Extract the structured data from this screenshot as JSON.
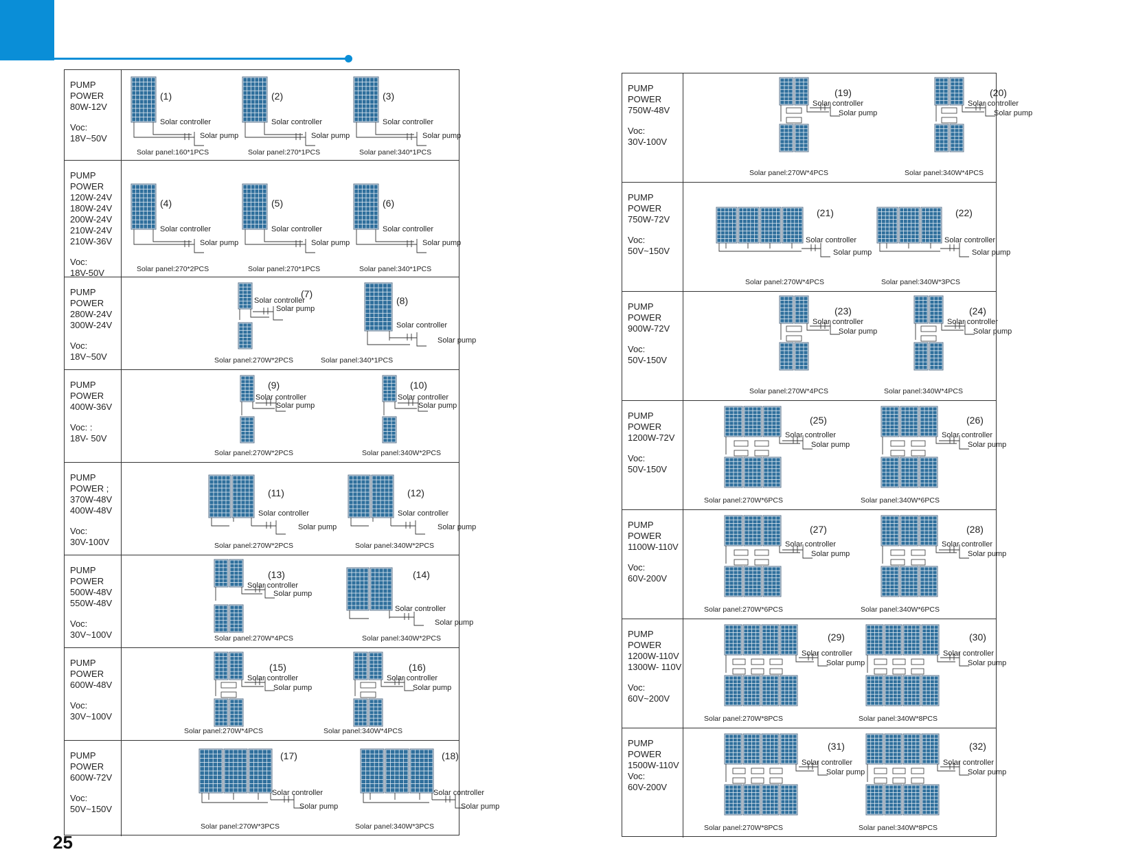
{
  "page_number": "25",
  "colors": {
    "accent": "#0a8ed7",
    "panel": "#2f6f9c"
  },
  "left_table": [
    {
      "label": [
        "PUMP",
        "POWER",
        "80W-12V",
        "",
        "Voc:",
        "18V~50V"
      ],
      "diagrams": [
        {
          "num": "(1)",
          "controller": "Solar controller",
          "pump": "Solar pump",
          "caption": "Solar panel:160*1PCS"
        },
        {
          "num": "(2)",
          "controller": "Solar controller",
          "pump": "Solar pump",
          "caption": "Solar panel:270*1PCS"
        },
        {
          "num": "(3)",
          "controller": "Solar controller",
          "pump": "Solar pump",
          "caption": "Solar panel:340*1PCS"
        }
      ]
    },
    {
      "label": [
        "PUMP",
        "POWER",
        "120W-24V",
        "180W-24V",
        "200W-24V",
        "210W-24V",
        "210W-36V",
        "",
        "Voc:",
        "18V-50V"
      ],
      "diagrams": [
        {
          "num": "(4)",
          "controller": "Solar controller",
          "pump": "Solar pump",
          "caption": "Solar panel:270*2PCS"
        },
        {
          "num": "(5)",
          "controller": "Solar controller",
          "pump": "Solar pump",
          "caption": "Solar panel:270*1PCS"
        },
        {
          "num": "(6)",
          "controller": "Solar controller",
          "pump": "Solar pump",
          "caption": "Solar panel:340*1PCS"
        }
      ]
    },
    {
      "label": [
        "PUMP",
        "POWER",
        "280W-24V",
        "300W-24V",
        "",
        "Voc:",
        "18V~50V"
      ],
      "diagrams": [
        {
          "num": "(7)",
          "controller": "Solar controller",
          "pump": "Solar pump",
          "caption": "Solar panel:270W*2PCS"
        },
        {
          "num": "(8)",
          "controller": "Solar controller",
          "pump": "Solar pump",
          "caption": "Solar panel:340*1PCS"
        }
      ]
    },
    {
      "label": [
        "PUMP",
        "POWER",
        "400W-36V",
        "",
        "Voc: :",
        "18V- 50V"
      ],
      "diagrams": [
        {
          "num": "(9)",
          "controller": "Solar controller",
          "pump": "Solar pump",
          "caption": "Solar panel:270W*2PCS"
        },
        {
          "num": "(10)",
          "controller": "Solar controller",
          "pump": "Solar pump",
          "caption": "Solar panel:340W*2PCS"
        }
      ]
    },
    {
      "label": [
        "PUMP",
        "POWER ;",
        "370W-48V",
        "400W-48V",
        "",
        "Voc:",
        "30V-100V"
      ],
      "diagrams": [
        {
          "num": "(11)",
          "controller": "Solar controller",
          "pump": "Solar pump",
          "caption": "Solar panel:270W*2PCS"
        },
        {
          "num": "(12)",
          "controller": "Solar controller",
          "pump": "Solar pump",
          "caption": "Solar panel:340W*2PCS"
        }
      ]
    },
    {
      "label": [
        "PUMP",
        "POWER",
        "500W-48V",
        "550W-48V",
        "",
        "Voc:",
        "30V~100V"
      ],
      "diagrams": [
        {
          "num": "(13)",
          "controller": "Solar controller",
          "pump": "Solar pump",
          "caption": "Solar panel:270W*4PCS"
        },
        {
          "num": "(14)",
          "controller": "Solar controller",
          "pump": "Solar pump",
          "caption": "Solar panel:340W*2PCS"
        }
      ]
    },
    {
      "label": [
        "PUMP",
        "POWER",
        "600W-48V",
        "",
        "Voc:",
        "30V~100V"
      ],
      "diagrams": [
        {
          "num": "(15)",
          "controller": "Solar controller",
          "pump": "Solar pump",
          "caption": "Solar panel:270W*4PCS"
        },
        {
          "num": "(16)",
          "controller": "Solar controller",
          "pump": "Solar pump",
          "caption": "Solar panel:340W*4PCS"
        }
      ]
    },
    {
      "label": [
        "PUMP",
        "POWER",
        "600W-72V",
        "",
        "Voc:",
        "50V~150V"
      ],
      "diagrams": [
        {
          "num": "(17)",
          "controller": "Solar controller",
          "pump": "Solar pump",
          "caption": "Solar panel:270W*3PCS"
        },
        {
          "num": "(18)",
          "controller": "Solar controller",
          "pump": "Solar pump",
          "caption": "Solar panel:340W*3PCS"
        }
      ]
    }
  ],
  "right_table": [
    {
      "label": [
        "PUMP",
        "POWER",
        "750W-48V",
        "",
        "Voc:",
        "30V-100V"
      ],
      "diagrams": [
        {
          "num": "(19)",
          "controller": "Solar controller",
          "pump": "Solar pump",
          "caption": "Solar panel:270W*4PCS"
        },
        {
          "num": "(20)",
          "controller": "Solar controller",
          "pump": "Solar pump",
          "caption": "Solar panel:340W*4PCS"
        }
      ]
    },
    {
      "label": [
        "PUMP",
        "POWER",
        "750W-72V",
        "",
        "Voc:",
        "50V~150V"
      ],
      "diagrams": [
        {
          "num": "(21)",
          "controller": "Solar controller",
          "pump": "Solar pump",
          "caption": "Solar panel:270W*4PCS"
        },
        {
          "num": "(22)",
          "controller": "Solar controller",
          "pump": "Solar pump",
          "caption": "Solar panel:340W*3PCS"
        }
      ]
    },
    {
      "label": [
        "PUMP",
        "POWER",
        "900W-72V",
        "",
        "Voc:",
        "50V-150V"
      ],
      "diagrams": [
        {
          "num": "(23)",
          "controller": "Solar controller",
          "pump": "Solar pump",
          "caption": "Solar panel:270W*4PCS"
        },
        {
          "num": "(24)",
          "controller": "Solar controller",
          "pump": "Solar pump",
          "caption": "Solar panel:340W*4PCS"
        }
      ]
    },
    {
      "label": [
        "PUMP",
        "POWER",
        "1200W-72V",
        "",
        "Voc:",
        "50V-150V"
      ],
      "diagrams": [
        {
          "num": "(25)",
          "controller": "Solar controller",
          "pump": "Solar pump",
          "caption": "Solar panel:270W*6PCS"
        },
        {
          "num": "(26)",
          "controller": "Solar controller",
          "pump": "Solar pump",
          "caption": "Solar panel:340W*6PCS"
        }
      ]
    },
    {
      "label": [
        "PUMP",
        "POWER",
        "1100W-110V",
        "",
        "Voc:",
        "60V-200V"
      ],
      "diagrams": [
        {
          "num": "(27)",
          "controller": "Solar controller",
          "pump": "Solar pump",
          "caption": "Solar panel:270W*6PCS"
        },
        {
          "num": "(28)",
          "controller": "Solar controller",
          "pump": "Solar pump",
          "caption": "Solar panel:340W*6PCS"
        }
      ]
    },
    {
      "label": [
        "PUMP",
        "POWER",
        "1200W-110V",
        "1300W- 110V",
        "",
        "Voc:",
        "60V~200V"
      ],
      "diagrams": [
        {
          "num": "(29)",
          "controller": "Solar controller",
          "pump": "Solar pump",
          "caption": "Solar panel:270W*8PCS"
        },
        {
          "num": "(30)",
          "controller": "Solar controller",
          "pump": "Solar pump",
          "caption": "Solar panel:340W*8PCS"
        }
      ]
    },
    {
      "label": [
        "PUMP",
        "POWER",
        "1500W-110V",
        "Voc:",
        "60V-200V"
      ],
      "diagrams": [
        {
          "num": "(31)",
          "controller": "Solar controller",
          "pump": "Solar pump",
          "caption": "Solar panel:270W*8PCS"
        },
        {
          "num": "(32)",
          "controller": "Solar controller",
          "pump": "Solar pump",
          "caption": "Solar panel:340W*8PCS"
        }
      ]
    }
  ]
}
